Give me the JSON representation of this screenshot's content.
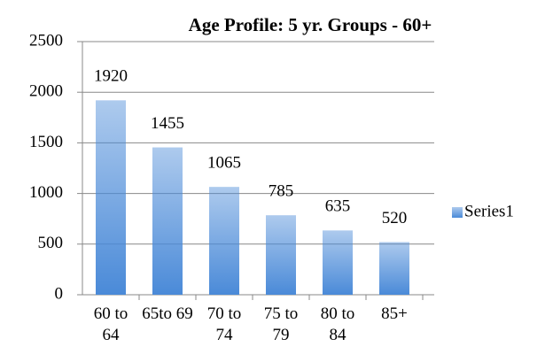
{
  "chart_data": {
    "type": "bar",
    "title": "Age Profile: 5 yr. Groups - 60+",
    "categories": [
      "60 to 64",
      "65to 69",
      "70 to 74",
      "75 to 79",
      "80 to 84",
      "85+"
    ],
    "series": [
      {
        "name": "Series1",
        "color": "#4a8ad8",
        "values": [
          1920,
          1455,
          1065,
          785,
          635,
          520
        ]
      }
    ],
    "ylim": [
      0,
      2500
    ],
    "yticks": [
      0,
      500,
      1000,
      1500,
      2000,
      2500
    ],
    "grid": true,
    "legend": "right",
    "data_labels": true
  }
}
